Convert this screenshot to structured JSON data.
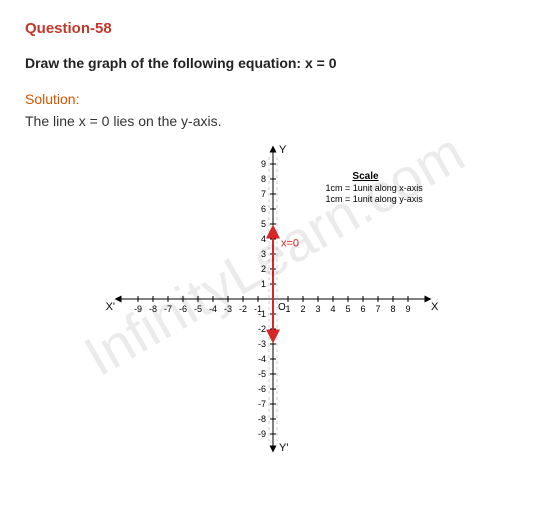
{
  "question": {
    "label": "Question-58",
    "text": "Draw the graph of the following equation: x = 0"
  },
  "solution": {
    "label": "Solution:",
    "text": "The line x = 0 lies on the y-axis."
  },
  "watermark": "InfinityLearn.com",
  "graph": {
    "type": "line-plot",
    "equation_label": "x=0",
    "axes": {
      "x": {
        "label_pos": "X",
        "label_neg": "X'",
        "min": -9,
        "max": 9,
        "tick_step": 1
      },
      "y": {
        "label_pos": "Y",
        "label_neg": "Y'",
        "min": -9,
        "max": 9,
        "tick_step": 1
      }
    },
    "origin_label": "O",
    "line": {
      "color": "#d62728",
      "width": 2,
      "y_start": -2.5,
      "y_end": 4.5,
      "x": 0
    },
    "scale_box": {
      "title": "Scale",
      "lines": [
        "1cm = 1unit along x-axis",
        "1cm = 1unit along y-axis"
      ],
      "fontsize": 9
    },
    "colors": {
      "axis": "#000000",
      "ticks": "#000000",
      "tick_label": "#000000",
      "equation_label": "#d62728"
    }
  }
}
